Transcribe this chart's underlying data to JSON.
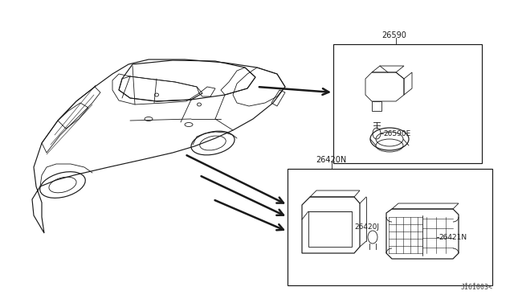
{
  "bg_color": "#ffffff",
  "fig_width": 6.4,
  "fig_height": 3.72,
  "dpi": 100,
  "watermark": "JÍ6Í003<",
  "box1_label": "26590",
  "box1_sub_label": "26590E",
  "box2_label": "26420N",
  "box2_sub_label1": "26420J",
  "box2_sub_label2": "26421N",
  "line_color": "#1a1a1a",
  "text_color": "#1a1a1a",
  "arrow_lw": 1.8
}
